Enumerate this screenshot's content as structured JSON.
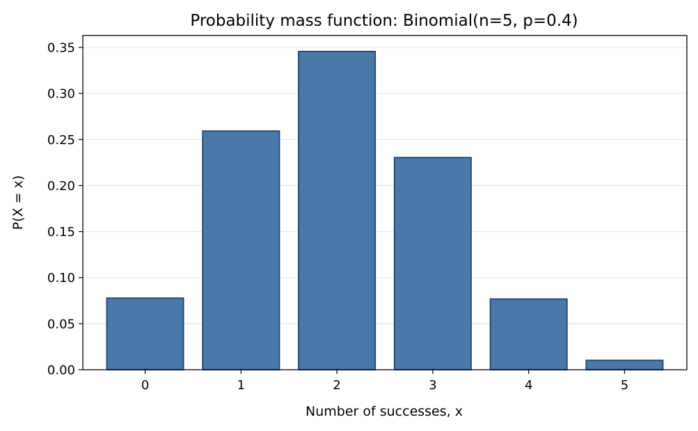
{
  "chart_data": {
    "type": "bar",
    "title": "Probability mass function: Binomial(n=5, p=0.4)",
    "xlabel": "Number of successes, x",
    "ylabel": "P(X = x)",
    "categories": [
      "0",
      "1",
      "2",
      "3",
      "4",
      "5"
    ],
    "values": [
      0.07776,
      0.2592,
      0.3456,
      0.2304,
      0.0768,
      0.01024
    ],
    "xlim": [
      -0.65,
      5.65
    ],
    "ylim": [
      0,
      0.3629
    ],
    "yticks": [
      0.0,
      0.05,
      0.1,
      0.15,
      0.2,
      0.25,
      0.3,
      0.35
    ],
    "ytick_labels": [
      "0.00",
      "0.05",
      "0.10",
      "0.15",
      "0.20",
      "0.25",
      "0.30",
      "0.35"
    ],
    "grid": "y",
    "legend": "none",
    "colors": {
      "bar_fill": "#4a78a8",
      "bar_edge": "#23446b",
      "grid": "#e6e6e6",
      "axis": "#000000"
    }
  }
}
